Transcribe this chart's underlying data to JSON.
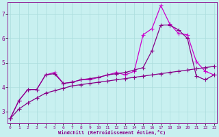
{
  "xlabel": "Windchill (Refroidissement éolien,°C)",
  "background_color": "#c8f0f0",
  "line_color1": "#cc00cc",
  "line_color2": "#880088",
  "line_color3": "#880088",
  "x_data": [
    0,
    1,
    2,
    3,
    4,
    5,
    6,
    7,
    8,
    9,
    10,
    11,
    12,
    13,
    14,
    15,
    16,
    17,
    18,
    19,
    20,
    21,
    22,
    23
  ],
  "series1": [
    2.7,
    3.45,
    3.9,
    3.9,
    4.5,
    4.6,
    4.15,
    4.2,
    4.3,
    4.3,
    4.4,
    4.5,
    4.6,
    4.5,
    4.65,
    6.15,
    6.4,
    7.35,
    6.6,
    6.2,
    6.15,
    5.05,
    4.65,
    4.5
  ],
  "series2": [
    2.7,
    3.45,
    3.9,
    3.9,
    4.5,
    4.55,
    4.15,
    4.2,
    4.3,
    4.35,
    4.4,
    4.5,
    4.55,
    4.6,
    4.7,
    4.8,
    5.5,
    6.55,
    6.55,
    6.35,
    6.0,
    4.45,
    4.3,
    4.5
  ],
  "series3": [
    2.7,
    3.1,
    3.35,
    3.55,
    3.75,
    3.85,
    3.95,
    4.05,
    4.1,
    4.15,
    4.2,
    4.25,
    4.3,
    4.35,
    4.4,
    4.45,
    4.5,
    4.55,
    4.6,
    4.65,
    4.7,
    4.75,
    4.8,
    4.85
  ],
  "xlim": [
    -0.3,
    23.3
  ],
  "ylim": [
    2.5,
    7.5
  ],
  "yticks": [
    3,
    4,
    5,
    6,
    7
  ],
  "xticks": [
    0,
    1,
    2,
    3,
    4,
    5,
    6,
    7,
    8,
    9,
    10,
    11,
    12,
    13,
    14,
    15,
    16,
    17,
    18,
    19,
    20,
    21,
    22,
    23
  ],
  "grid_color": "#aadddd",
  "markersize": 2.5,
  "linewidth": 0.9
}
